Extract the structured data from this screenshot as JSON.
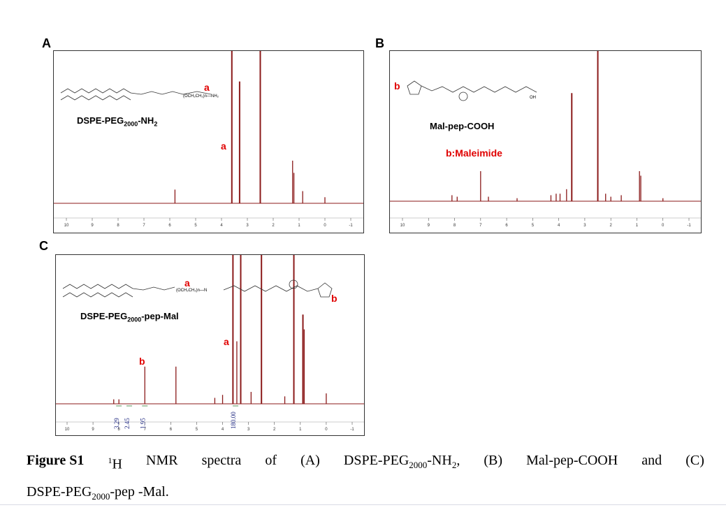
{
  "figure": {
    "caption": {
      "label": "Figure S1",
      "sup": "1",
      "line1_parts": [
        "H",
        "NMR",
        "spectra",
        "of",
        "(A)",
        "DSPE-PEG",
        "2000",
        "-NH",
        "2",
        ",",
        "(B)",
        "Mal-pep-COOH",
        "and",
        "(C)"
      ],
      "line2_a": "DSPE-PEG",
      "line2_sub": "2000",
      "line2_b": "-pep -Mal."
    }
  },
  "panels": {
    "A": {
      "letter": "A",
      "compound_main": "DSPE-PEG",
      "compound_sub1": "2000",
      "compound_mid": "-NH",
      "compound_sub2": "2",
      "label_a_top": "a",
      "label_a_peak": "a",
      "struct_frag": "(OCH₂CH₂)n—NH₂"
    },
    "B": {
      "letter": "B",
      "compound": "Mal-pep-COOH",
      "label_b": "b",
      "annotation": "b:Maleimide",
      "struct_frag": "OH"
    },
    "C": {
      "letter": "C",
      "compound_main": "DSPE-PEG",
      "compound_sub": "2000",
      "compound_end": "-pep-Mal",
      "label_a_top": "a",
      "label_a_peak": "a",
      "label_b_struct": "b",
      "label_b_peak": "b",
      "struct_frag": "(OCH₂CH₂)n—N",
      "integrals": [
        "3.29",
        "2.45",
        "1.95",
        "180.00"
      ]
    }
  },
  "chart_data": [
    {
      "type": "line",
      "panel": "A",
      "title": "",
      "xlabel": "",
      "ylabel": "",
      "xlim": [
        10,
        -1
      ],
      "x_reversed": true,
      "x_ticks": [
        "10",
        "9",
        "8",
        "7",
        "6",
        "5",
        "4",
        "3",
        "2",
        "1",
        "0",
        "-1"
      ],
      "color": "#8b1a1a",
      "peaks_ppm": [
        {
          "x": 5.8,
          "rel_h": 0.09
        },
        {
          "x": 3.6,
          "rel_h": 1.0
        },
        {
          "x": 3.3,
          "rel_h": 0.8
        },
        {
          "x": 2.5,
          "rel_h": 1.0
        },
        {
          "x": 1.25,
          "rel_h": 0.28
        },
        {
          "x": 1.2,
          "rel_h": 0.2
        },
        {
          "x": 0.86,
          "rel_h": 0.08
        },
        {
          "x": 0.0,
          "rel_h": 0.04
        }
      ]
    },
    {
      "type": "line",
      "panel": "B",
      "title": "",
      "xlabel": "",
      "ylabel": "",
      "xlim": [
        10,
        -1
      ],
      "x_reversed": true,
      "x_ticks": [
        "10",
        "9",
        "8",
        "7",
        "6",
        "5",
        "4",
        "3",
        "2",
        "1",
        "0",
        "-1"
      ],
      "color": "#8b1a1a",
      "peaks_ppm": [
        {
          "x": 8.1,
          "rel_h": 0.04
        },
        {
          "x": 7.9,
          "rel_h": 0.03
        },
        {
          "x": 7.0,
          "rel_h": 0.2
        },
        {
          "x": 6.7,
          "rel_h": 0.03
        },
        {
          "x": 5.6,
          "rel_h": 0.02
        },
        {
          "x": 4.3,
          "rel_h": 0.04
        },
        {
          "x": 4.1,
          "rel_h": 0.05
        },
        {
          "x": 3.95,
          "rel_h": 0.05
        },
        {
          "x": 3.7,
          "rel_h": 0.08
        },
        {
          "x": 3.5,
          "rel_h": 0.72
        },
        {
          "x": 2.5,
          "rel_h": 1.0
        },
        {
          "x": 2.2,
          "rel_h": 0.05
        },
        {
          "x": 2.0,
          "rel_h": 0.03
        },
        {
          "x": 1.6,
          "rel_h": 0.04
        },
        {
          "x": 0.9,
          "rel_h": 0.2
        },
        {
          "x": 0.85,
          "rel_h": 0.17
        },
        {
          "x": 0.0,
          "rel_h": 0.02
        }
      ]
    },
    {
      "type": "line",
      "panel": "C",
      "title": "",
      "xlabel": "",
      "ylabel": "",
      "xlim": [
        10,
        -1
      ],
      "x_reversed": true,
      "x_ticks": [
        "10",
        "9",
        "8",
        "7",
        "6",
        "5",
        "4",
        "3",
        "2",
        "1",
        "0",
        "-1"
      ],
      "color": "#8b1a1a",
      "peaks_ppm": [
        {
          "x": 8.2,
          "rel_h": 0.03
        },
        {
          "x": 8.0,
          "rel_h": 0.03
        },
        {
          "x": 7.0,
          "rel_h": 0.25
        },
        {
          "x": 5.8,
          "rel_h": 0.25
        },
        {
          "x": 4.3,
          "rel_h": 0.04
        },
        {
          "x": 4.0,
          "rel_h": 0.06
        },
        {
          "x": 3.6,
          "rel_h": 1.0
        },
        {
          "x": 3.45,
          "rel_h": 0.42
        },
        {
          "x": 3.3,
          "rel_h": 1.0
        },
        {
          "x": 2.9,
          "rel_h": 0.08
        },
        {
          "x": 2.5,
          "rel_h": 1.0
        },
        {
          "x": 1.6,
          "rel_h": 0.05
        },
        {
          "x": 1.25,
          "rel_h": 1.0
        },
        {
          "x": 0.9,
          "rel_h": 0.6
        },
        {
          "x": 0.85,
          "rel_h": 0.5
        },
        {
          "x": 0.0,
          "rel_h": 0.07
        }
      ],
      "integrals": [
        {
          "label": "3.29",
          "x": 8.0
        },
        {
          "label": "2.45",
          "x": 7.6
        },
        {
          "label": "1.95",
          "x": 7.0
        },
        {
          "label": "180.00",
          "x": 3.5
        }
      ]
    }
  ]
}
